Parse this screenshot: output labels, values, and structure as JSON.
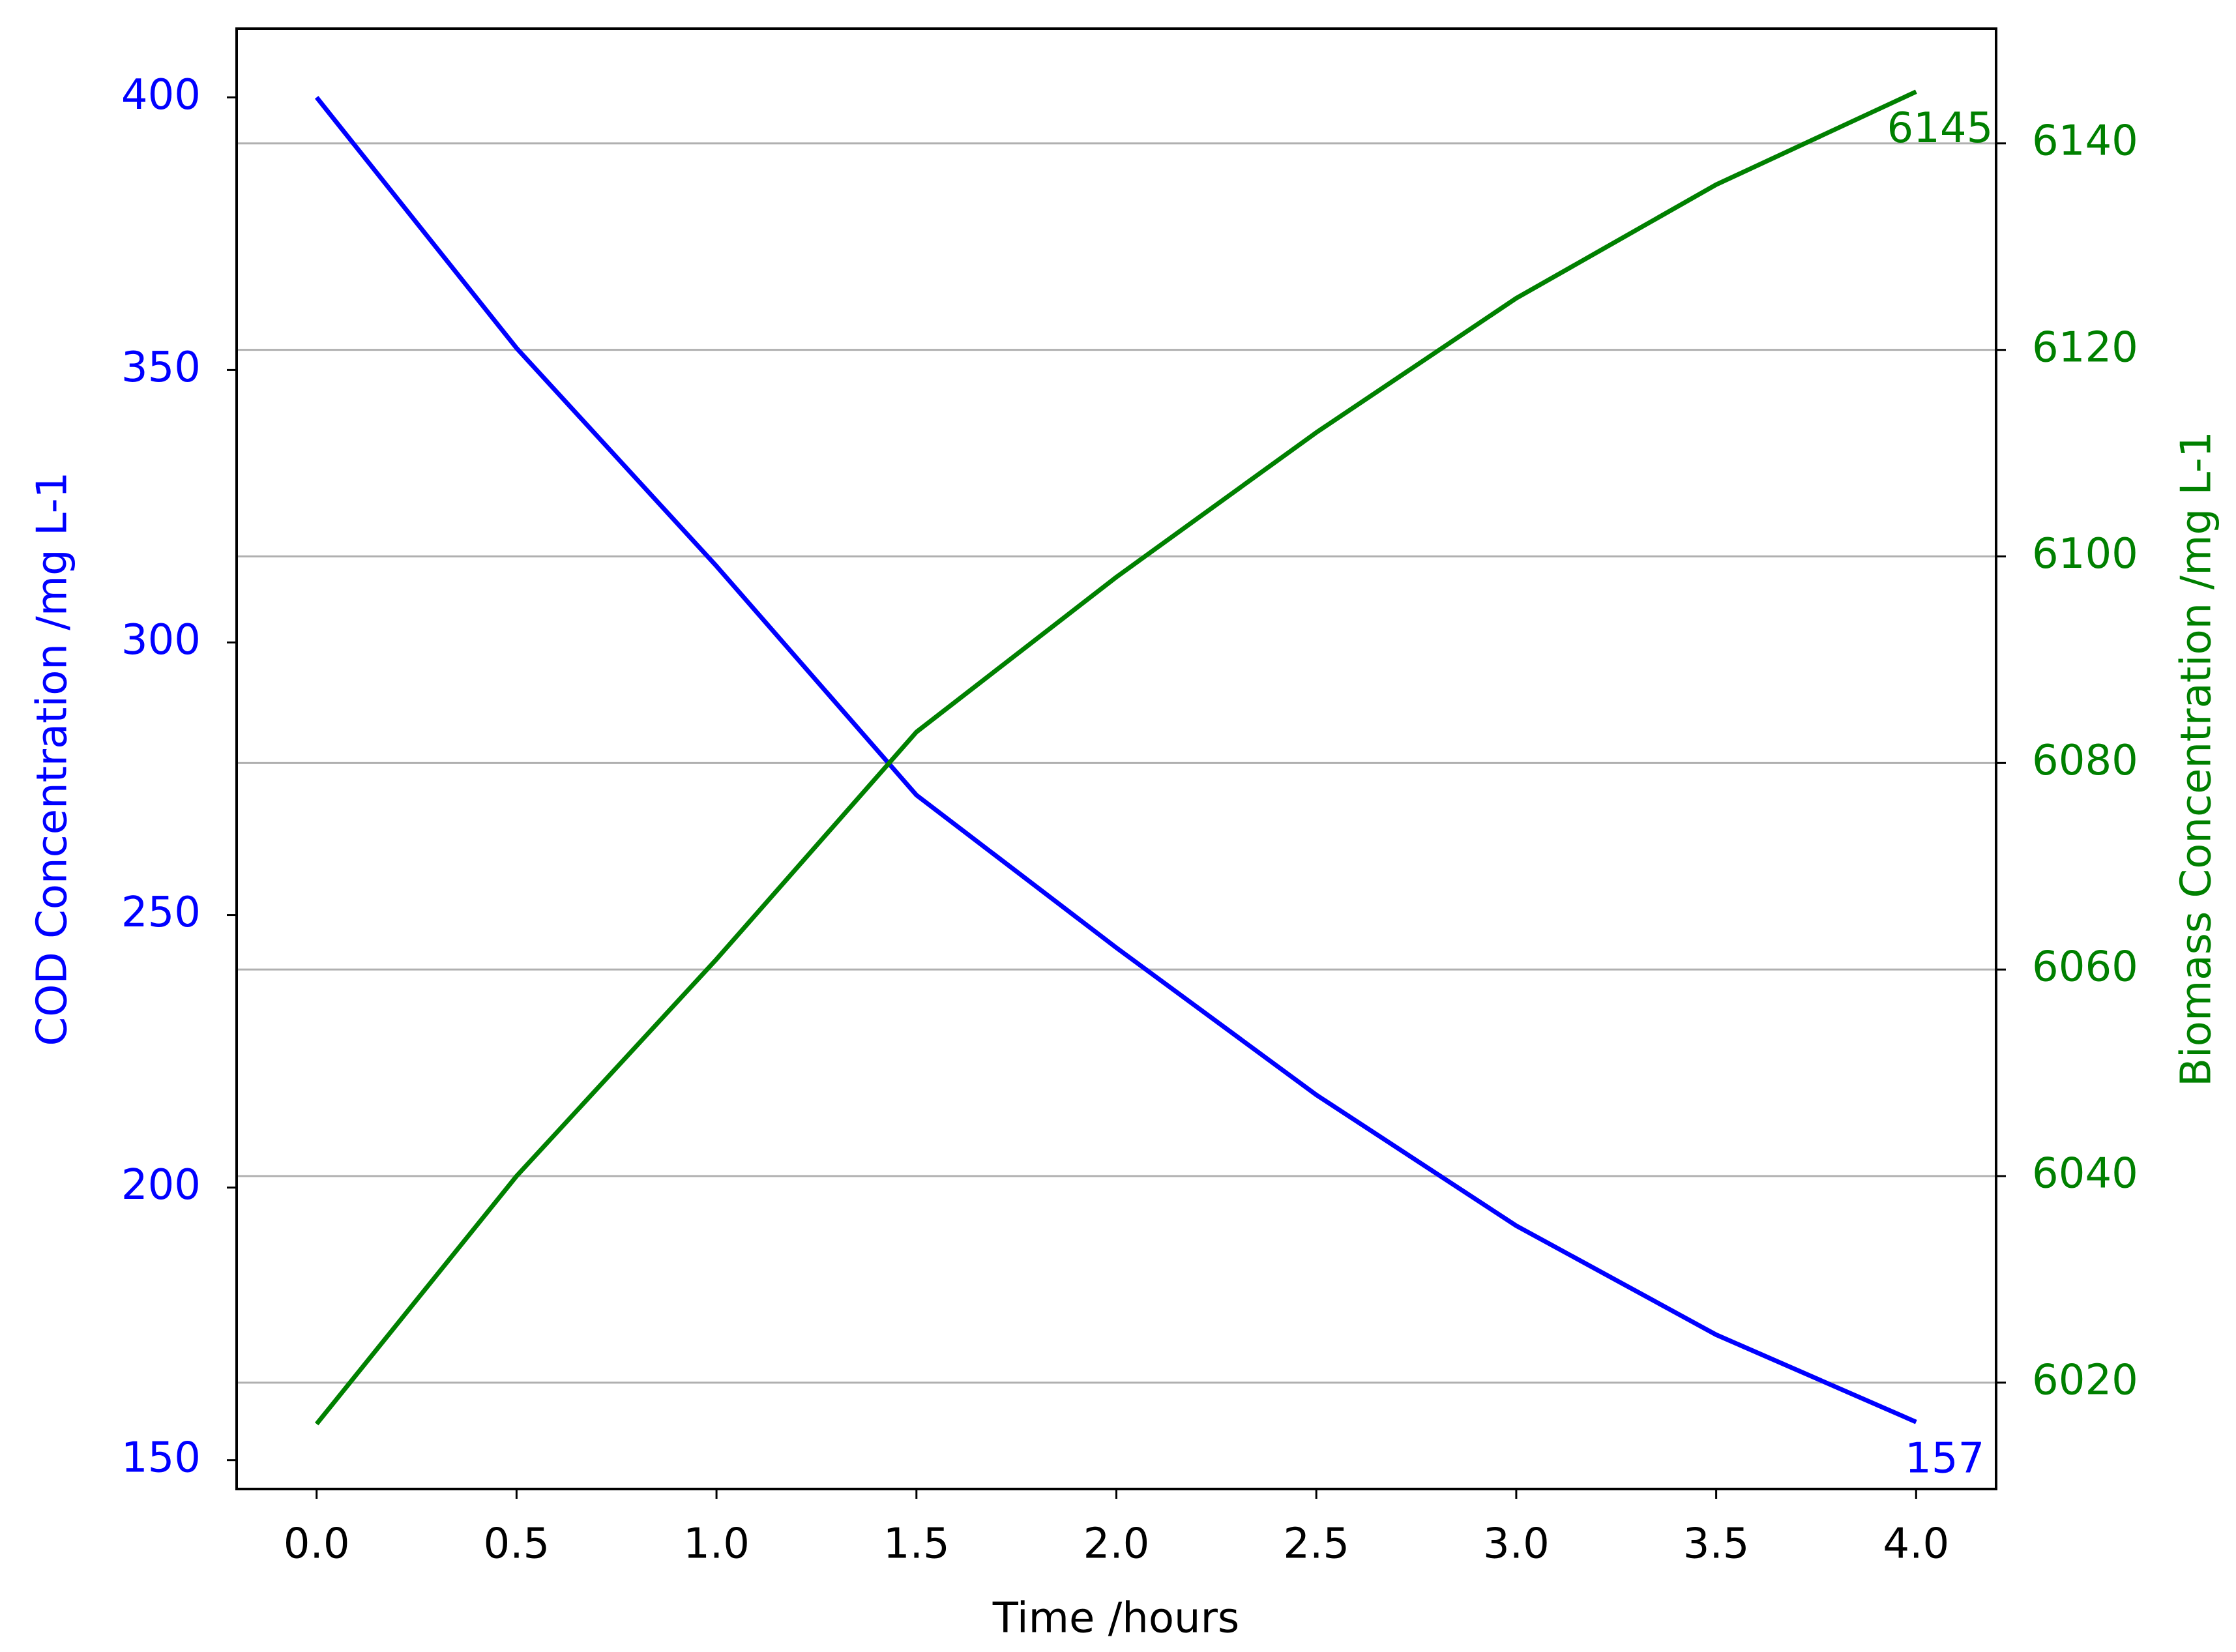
{
  "chart_data": {
    "type": "line",
    "x": [
      0,
      0.5,
      1,
      1.5,
      2,
      2.5,
      3,
      3.5,
      4
    ],
    "series": [
      {
        "name": "COD Concentration /mg L-1",
        "color": "#0000ff",
        "axis": "y",
        "values": [
          400,
          354,
          314,
          272,
          244,
          217,
          193,
          173,
          157
        ]
      },
      {
        "name": "Biomass Concentration /mg L-1",
        "color": "#008000",
        "axis": "y2",
        "values": [
          6016,
          6040,
          6061,
          6083,
          6098,
          6112,
          6125,
          6136,
          6145
        ]
      }
    ],
    "x_label": "Time /hours",
    "y_label": "COD Concentration /mg L-1",
    "y2_label": "Biomass Concentration /mg L-1",
    "annotations": [
      {
        "text": "6145",
        "series": 1
      },
      {
        "text": "157",
        "series": 0
      }
    ],
    "xlim": [
      -0.2,
      4.2
    ],
    "xticks": [
      {
        "value": 0,
        "label": "0.0"
      },
      {
        "value": 0.5,
        "label": "0.5"
      },
      {
        "value": 1,
        "label": "1.0"
      },
      {
        "value": 1.5,
        "label": "1.5"
      },
      {
        "value": 2,
        "label": "2.0"
      },
      {
        "value": 2.5,
        "label": "2.5"
      },
      {
        "value": 3,
        "label": "3.0"
      },
      {
        "value": 3.5,
        "label": "3.5"
      },
      {
        "value": 4,
        "label": "4.0"
      }
    ],
    "ylim": [
      144.7,
      412.6
    ],
    "yticks": [
      150,
      200,
      250,
      300,
      350,
      400
    ],
    "y2lim": [
      6009.7,
      6151.1
    ],
    "y2ticks": [
      6020,
      6040,
      6060,
      6080,
      6100,
      6120,
      6140
    ],
    "grid": "y2"
  }
}
